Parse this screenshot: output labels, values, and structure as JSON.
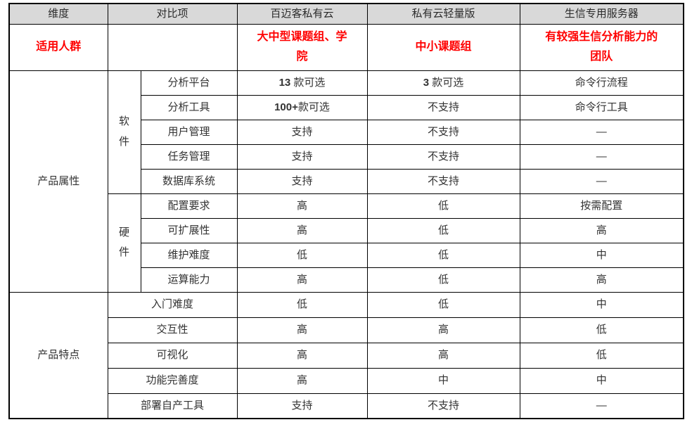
{
  "table": {
    "headers": [
      "维度",
      "对比项",
      "百迈客私有云",
      "私有云轻量版",
      "生信专用服务器"
    ],
    "audience": {
      "label": "适用人群",
      "values": [
        "大中型课题组、学院",
        "中小课题组",
        "有较强生信分析能力的团队"
      ]
    },
    "sections": [
      {
        "dimension": "产品属性",
        "groups": [
          {
            "name": "软件",
            "rows": [
              {
                "item": "分析平台",
                "values": [
                  "13 款可选",
                  "3 款可选",
                  "命令行流程"
                ]
              },
              {
                "item": "分析工具",
                "values": [
                  "100+款可选",
                  "不支持",
                  "命令行工具"
                ]
              },
              {
                "item": "用户管理",
                "values": [
                  "支持",
                  "不支持",
                  "—"
                ]
              },
              {
                "item": "任务管理",
                "values": [
                  "支持",
                  "不支持",
                  "—"
                ]
              },
              {
                "item": "数据库系统",
                "values": [
                  "支持",
                  "不支持",
                  "—"
                ]
              }
            ]
          },
          {
            "name": "硬件",
            "rows": [
              {
                "item": "配置要求",
                "values": [
                  "高",
                  "低",
                  "按需配置"
                ]
              },
              {
                "item": "可扩展性",
                "values": [
                  "高",
                  "低",
                  "高"
                ]
              },
              {
                "item": "维护难度",
                "values": [
                  "低",
                  "低",
                  "中"
                ]
              },
              {
                "item": "运算能力",
                "values": [
                  "高",
                  "低",
                  "高"
                ]
              }
            ]
          }
        ]
      },
      {
        "dimension": "产品特点",
        "rows": [
          {
            "item": "入门难度",
            "values": [
              "低",
              "低",
              "中"
            ]
          },
          {
            "item": "交互性",
            "values": [
              "高",
              "高",
              "低"
            ]
          },
          {
            "item": "可视化",
            "values": [
              "高",
              "高",
              "低"
            ]
          },
          {
            "item": "功能完善度",
            "values": [
              "高",
              "中",
              "中"
            ]
          },
          {
            "item": "部署自产工具",
            "values": [
              "支持",
              "不支持",
              "—"
            ]
          }
        ]
      }
    ],
    "colors": {
      "header_bg": "#d9d9d9",
      "highlight_text": "#ff0000",
      "border": "#000000",
      "body_text": "#333333"
    }
  }
}
